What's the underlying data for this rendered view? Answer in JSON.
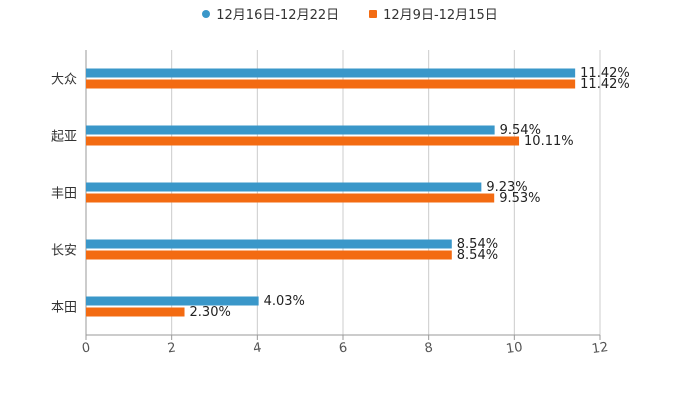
{
  "chart_data": {
    "type": "bar",
    "orientation": "horizontal",
    "categories": [
      "大众",
      "起亚",
      "丰田",
      "长安",
      "本田"
    ],
    "series": [
      {
        "name": "12月16日-12月22日",
        "color": "#3a97c9",
        "values": [
          11.42,
          9.54,
          9.23,
          8.54,
          4.03
        ],
        "labels": [
          "11.42%",
          "9.54%",
          "9.23%",
          "8.54%",
          "4.03%"
        ]
      },
      {
        "name": "12月9日-12月15日",
        "color": "#f36b12",
        "values": [
          11.42,
          10.11,
          9.53,
          8.54,
          2.3
        ],
        "labels": [
          "11.42%",
          "10.11%",
          "9.53%",
          "8.54%",
          "2.30%"
        ]
      }
    ],
    "xlim": [
      0,
      12
    ],
    "xticks": [
      "0",
      "2",
      "4",
      "6",
      "8",
      "10",
      "12"
    ],
    "grid": true,
    "legend": "top-center"
  }
}
